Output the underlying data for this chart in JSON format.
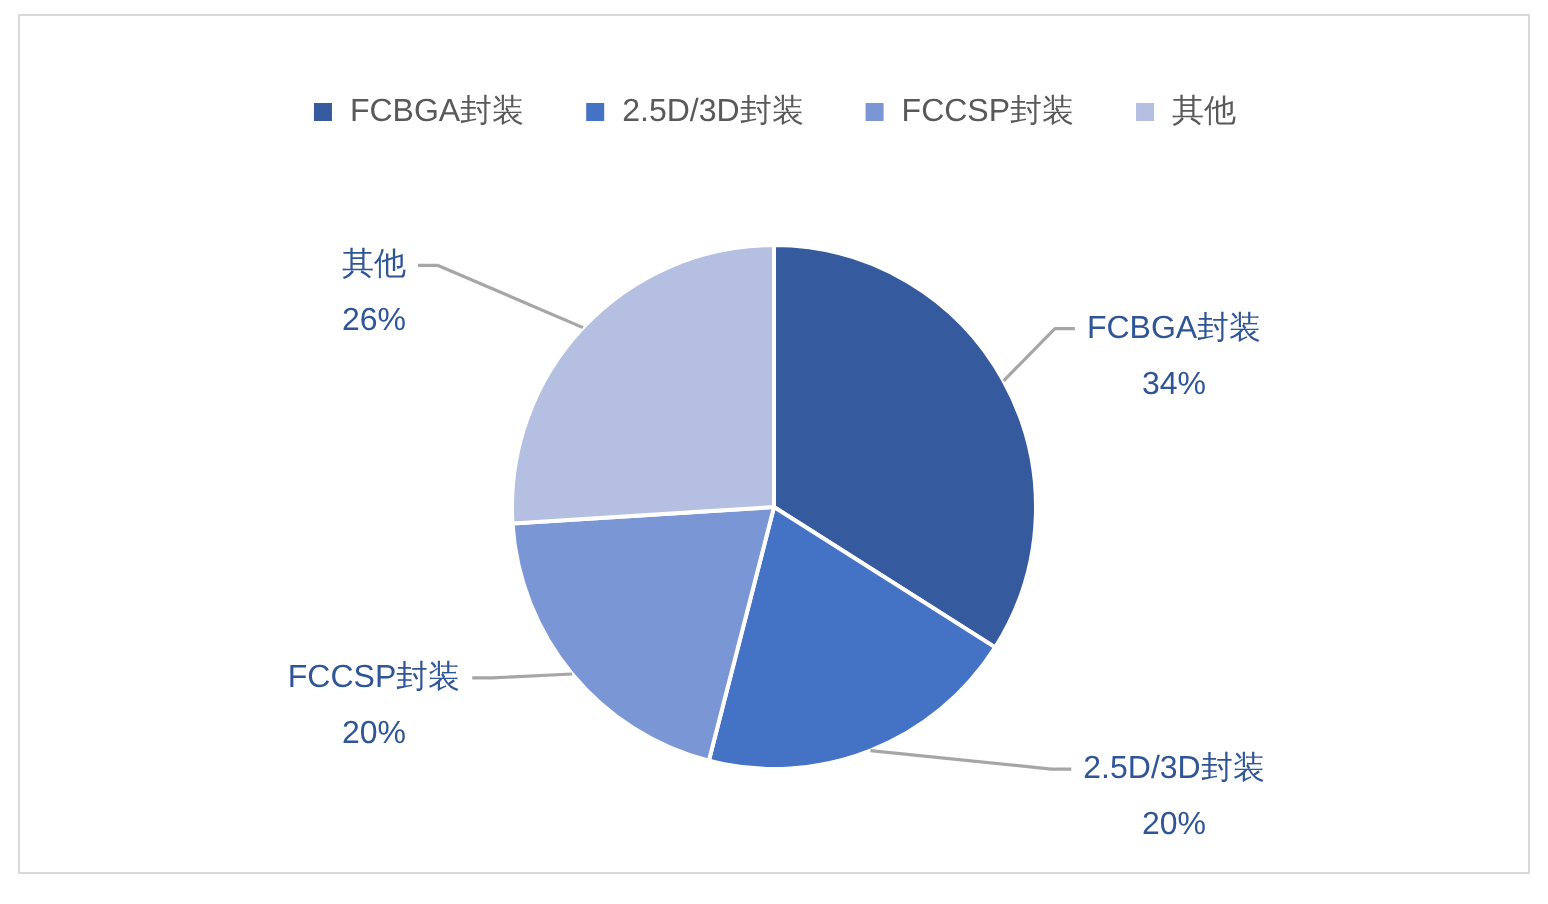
{
  "chart_data": {
    "type": "pie",
    "categories": [
      "FCBGA封装",
      "2.5D/3D封装",
      "FCCSP封装",
      "其他"
    ],
    "values": [
      34,
      20,
      20,
      26
    ],
    "colors": [
      "#365a9e",
      "#4472c4",
      "#7b96d4",
      "#b4bfe2"
    ],
    "value_labels": [
      "34%",
      "20%",
      "20%",
      "26%"
    ],
    "legend": "top"
  }
}
